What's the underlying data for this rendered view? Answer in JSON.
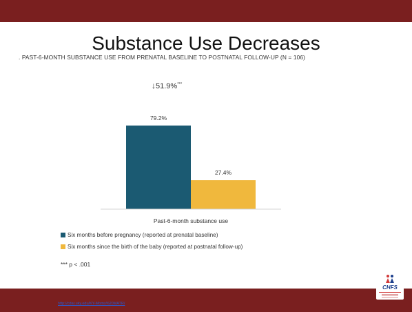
{
  "slide": {
    "title": "Substance Use Decreases",
    "source_link": "http://cdar.uky.edu/KY-Moms%20MATR/"
  },
  "colors": {
    "bar_band": "#7a1f1f",
    "series_before": "#1b5a72",
    "series_after": "#f0b83d"
  },
  "logo": {
    "text": "CHFS",
    "icon": "family-figure-icon"
  },
  "chart_data": {
    "type": "bar",
    "title": ". PAST-6-MONTH SUBSTANCE USE FROM PRENATAL BASELINE TO POSTNATAL FOLLOW-UP (N = 106)",
    "categories": [
      "Past-6-month substance use"
    ],
    "series": [
      {
        "name": "Six months before pregnancy (reported at prenatal baseline)",
        "values": [
          79.2
        ],
        "label": "79.2%",
        "color": "#1b5a72"
      },
      {
        "name": "Six months since the birth of the baby (reported at postnatal follow-up)",
        "values": [
          27.4
        ],
        "label": "27.4%",
        "color": "#f0b83d"
      }
    ],
    "ylim": [
      0,
      100
    ],
    "xlabel": "",
    "ylabel": "",
    "grid": false,
    "legend": "bottom-left",
    "annotations": {
      "change_value": "51.9%",
      "change_sig": "***",
      "footnote": "*** p < .001"
    }
  }
}
